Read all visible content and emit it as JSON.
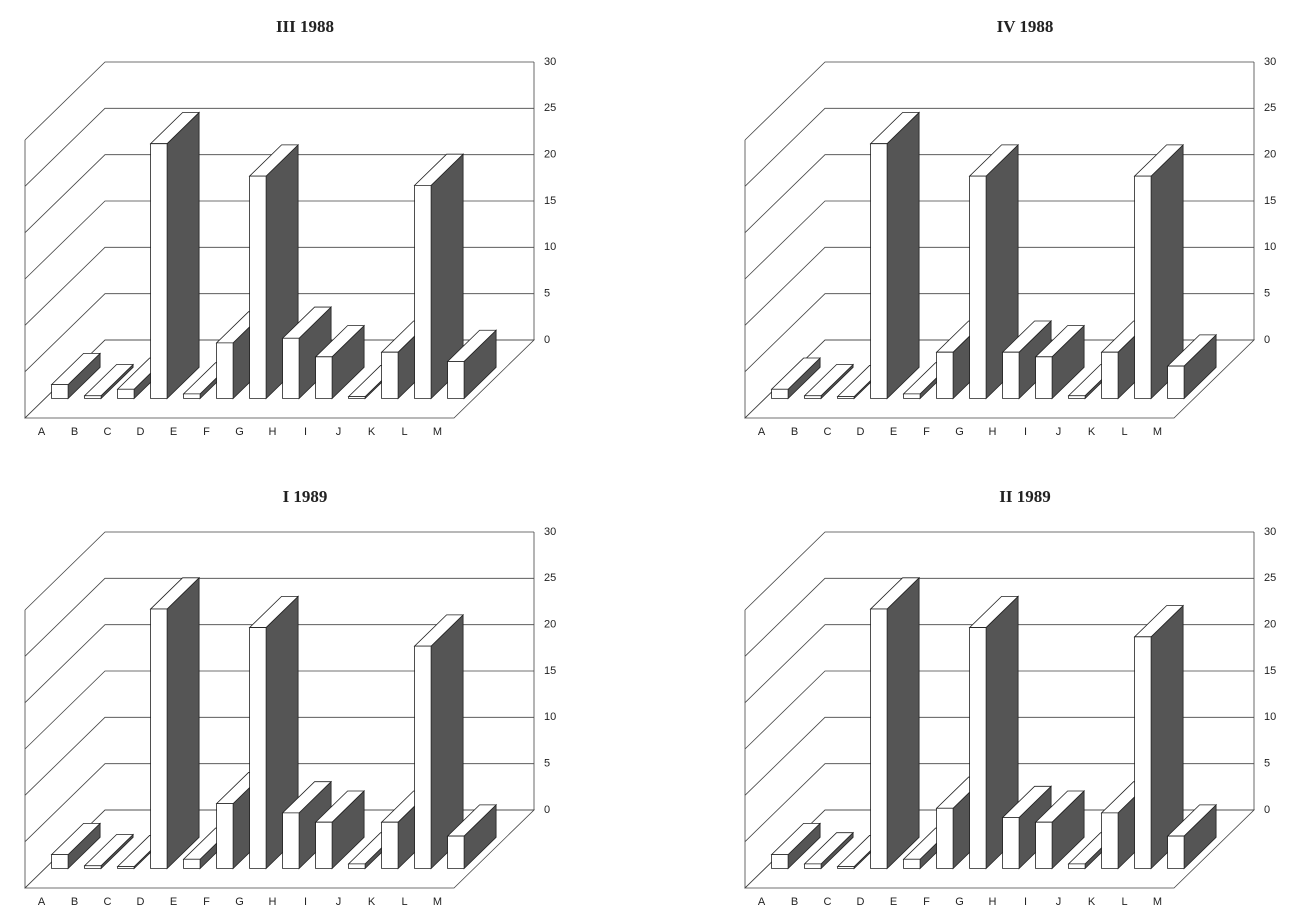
{
  "chart_data": [
    {
      "type": "bar",
      "title": "III 1988",
      "categories": [
        "A",
        "B",
        "C",
        "D",
        "E",
        "F",
        "G",
        "H",
        "I",
        "J",
        "K",
        "L",
        "M"
      ],
      "values": [
        1.5,
        0.3,
        1,
        27.5,
        0.5,
        6,
        24,
        6.5,
        4.5,
        0.2,
        5,
        23,
        4
      ],
      "color": "#555555",
      "ylim": [
        0,
        30
      ],
      "yticks": [
        0,
        5,
        10,
        15,
        20,
        25,
        30
      ],
      "grid": true
    },
    {
      "type": "bar",
      "title": "IV 1988",
      "categories": [
        "A",
        "B",
        "C",
        "D",
        "E",
        "F",
        "G",
        "H",
        "I",
        "J",
        "K",
        "L",
        "M"
      ],
      "values": [
        1,
        0.3,
        0.2,
        27.5,
        0.5,
        5,
        24,
        5,
        4.5,
        0.3,
        5,
        24,
        3.5
      ],
      "color": "#555555",
      "ylim": [
        0,
        30
      ],
      "yticks": [
        0,
        5,
        10,
        15,
        20,
        25,
        30
      ],
      "grid": true
    },
    {
      "type": "bar",
      "title": "I 1989",
      "categories": [
        "A",
        "B",
        "C",
        "D",
        "E",
        "F",
        "G",
        "H",
        "I",
        "J",
        "K",
        "L",
        "M"
      ],
      "values": [
        1.5,
        0.3,
        0.2,
        28,
        1,
        7,
        26,
        6,
        5,
        0.5,
        5,
        24,
        3.5
      ],
      "color": "#555555",
      "ylim": [
        0,
        30
      ],
      "yticks": [
        0,
        5,
        10,
        15,
        20,
        25,
        30
      ],
      "grid": true
    },
    {
      "type": "bar",
      "title": "II 1989",
      "categories": [
        "A",
        "B",
        "C",
        "D",
        "E",
        "F",
        "G",
        "H",
        "I",
        "J",
        "K",
        "L",
        "M"
      ],
      "values": [
        1.5,
        0.5,
        0.2,
        28,
        1,
        6.5,
        26,
        5.5,
        5,
        0.5,
        6,
        25,
        3.5
      ],
      "color": "#555555",
      "ylim": [
        0,
        30
      ],
      "yticks": [
        0,
        5,
        10,
        15,
        20,
        25,
        30
      ],
      "grid": true
    }
  ]
}
